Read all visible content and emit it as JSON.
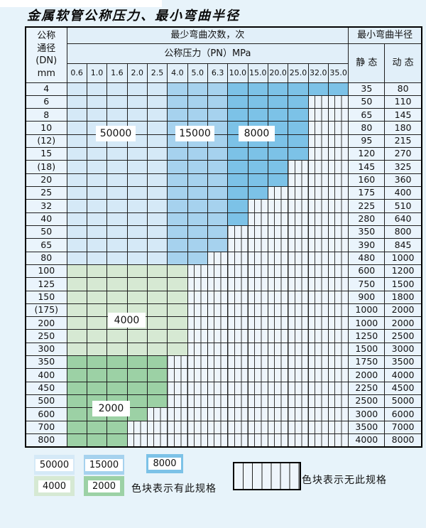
{
  "title": "金属软管公称压力、最小弯曲半径",
  "colors": {
    "c50k": "#d5e9f7",
    "c15k": "#a6d2ee",
    "c8k": "#7cc2e7",
    "c4k": "#d6e9d3",
    "c2k": "#9cd1a5",
    "cellBg": "#eaf4fc",
    "headerBg": "#e1eff9",
    "stripeBg": "#eef5fb"
  },
  "table": {
    "header": {
      "dn_lines": [
        "公称",
        "通径",
        "(DN)",
        "mm"
      ],
      "bend_cycles_label": "最少弯曲次数，次",
      "radius_label": "最小弯曲半径",
      "pressure_label": "公称压力（PN）MPa",
      "static_label": "静 态",
      "dynamic_label": "动 态",
      "pressures": [
        "0.6",
        "1.0",
        "1.6",
        "2.0",
        "2.5",
        "4.0",
        "5.0",
        "6.3",
        "10.0",
        "15.0",
        "20.0",
        "25.0",
        "32.0",
        "35.0"
      ]
    },
    "zone_classes": {
      "blue": {
        "breaks": [
          5,
          8
        ],
        "classes": [
          "c50k",
          "c15k",
          "c8k"
        ]
      },
      "green4": {
        "breaks": [],
        "classes": [
          "c4k"
        ]
      },
      "green2": {
        "breaks": [],
        "classes": [
          "c2k"
        ]
      }
    },
    "rows": [
      {
        "dn": "4",
        "band": "blue",
        "filled": 14,
        "static": "35",
        "dynamic": "80"
      },
      {
        "dn": "6",
        "band": "blue",
        "filled": 12,
        "static": "50",
        "dynamic": "110"
      },
      {
        "dn": "8",
        "band": "blue",
        "filled": 12,
        "static": "65",
        "dynamic": "145"
      },
      {
        "dn": "10",
        "band": "blue",
        "filled": 12,
        "static": "80",
        "dynamic": "180"
      },
      {
        "dn": "(12)",
        "band": "blue",
        "filled": 12,
        "static": "95",
        "dynamic": "215"
      },
      {
        "dn": "15",
        "band": "blue",
        "filled": 12,
        "static": "120",
        "dynamic": "270"
      },
      {
        "dn": "(18)",
        "band": "blue",
        "filled": 11,
        "static": "145",
        "dynamic": "325"
      },
      {
        "dn": "20",
        "band": "blue",
        "filled": 11,
        "static": "160",
        "dynamic": "360"
      },
      {
        "dn": "25",
        "band": "blue",
        "filled": 10,
        "static": "175",
        "dynamic": "400"
      },
      {
        "dn": "32",
        "band": "blue",
        "filled": 9,
        "static": "225",
        "dynamic": "510"
      },
      {
        "dn": "40",
        "band": "blue",
        "filled": 9,
        "static": "280",
        "dynamic": "640"
      },
      {
        "dn": "50",
        "band": "blue",
        "filled": 8,
        "static": "350",
        "dynamic": "800"
      },
      {
        "dn": "65",
        "band": "blue",
        "filled": 8,
        "static": "390",
        "dynamic": "845"
      },
      {
        "dn": "80",
        "band": "blue",
        "filled": 7,
        "static": "480",
        "dynamic": "1000"
      },
      {
        "dn": "100",
        "band": "green4",
        "filled": 6,
        "static": "600",
        "dynamic": "1200"
      },
      {
        "dn": "125",
        "band": "green4",
        "filled": 6,
        "static": "750",
        "dynamic": "1500"
      },
      {
        "dn": "150",
        "band": "green4",
        "filled": 6,
        "static": "900",
        "dynamic": "1800"
      },
      {
        "dn": "(175)",
        "band": "green4",
        "filled": 6,
        "static": "1000",
        "dynamic": "2000"
      },
      {
        "dn": "200",
        "band": "green4",
        "filled": 6,
        "static": "1000",
        "dynamic": "2000"
      },
      {
        "dn": "250",
        "band": "green4",
        "filled": 6,
        "static": "1250",
        "dynamic": "2500"
      },
      {
        "dn": "300",
        "band": "green4",
        "filled": 6,
        "static": "1500",
        "dynamic": "3000"
      },
      {
        "dn": "350",
        "band": "green2",
        "filled": 5,
        "static": "1750",
        "dynamic": "3500"
      },
      {
        "dn": "400",
        "band": "green2",
        "filled": 5,
        "static": "2000",
        "dynamic": "4000"
      },
      {
        "dn": "450",
        "band": "green2",
        "filled": 5,
        "static": "2250",
        "dynamic": "4500"
      },
      {
        "dn": "500",
        "band": "green2",
        "filled": 5,
        "static": "2500",
        "dynamic": "5000"
      },
      {
        "dn": "600",
        "band": "green2",
        "filled": 4,
        "static": "3000",
        "dynamic": "6000"
      },
      {
        "dn": "700",
        "band": "green2",
        "filled": 3,
        "static": "3500",
        "dynamic": "7000"
      },
      {
        "dn": "800",
        "band": "green2",
        "filled": 3,
        "static": "4000",
        "dynamic": "8000"
      }
    ]
  },
  "overlay_labels": [
    {
      "text": "50000"
    },
    {
      "text": "15000"
    },
    {
      "text": "8000"
    },
    {
      "text": "4000"
    },
    {
      "text": "2000"
    }
  ],
  "legend": {
    "items": [
      {
        "text": "50000",
        "class": "c50k"
      },
      {
        "text": "15000",
        "class": "c15k"
      },
      {
        "text": "8000",
        "class": "c8k"
      },
      {
        "text": "4000",
        "class": "c4k"
      },
      {
        "text": "2000",
        "class": "c2k"
      }
    ],
    "has_spec_text": "色块表示有此规格",
    "no_spec_text": "色块表示无此规格"
  }
}
